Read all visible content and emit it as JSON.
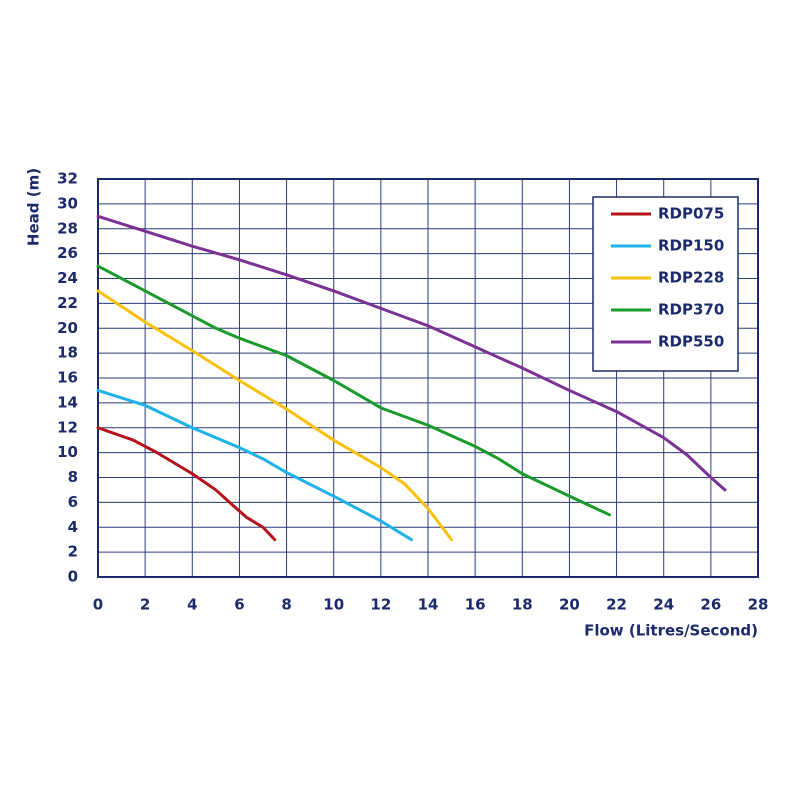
{
  "chart_data": {
    "type": "line",
    "xlabel": "Flow (Litres/Second)",
    "ylabel": "Head (m)",
    "xlim": [
      0,
      28
    ],
    "xticks": [
      0,
      2,
      4,
      6,
      8,
      10,
      12,
      14,
      16,
      18,
      20,
      22,
      24,
      26,
      28
    ],
    "ylim": [
      0,
      32
    ],
    "yticks": [
      0,
      2,
      4,
      6,
      8,
      10,
      12,
      14,
      16,
      18,
      20,
      22,
      24,
      26,
      28,
      30,
      32
    ],
    "grid": true,
    "legend": "top-right",
    "series": [
      {
        "name": "RDP075",
        "color": "#b5121b",
        "x": [
          0,
          1.5,
          2.5,
          4,
          5,
          5.7,
          6.3,
          7,
          7.5
        ],
        "values": [
          12,
          11,
          10,
          8.3,
          7,
          5.8,
          4.8,
          4,
          3
        ]
      },
      {
        "name": "RDP150",
        "color": "#1fb2e8",
        "x": [
          0,
          2,
          4,
          6,
          7,
          8,
          10,
          12,
          13.3
        ],
        "values": [
          15,
          13.8,
          12,
          10.4,
          9.5,
          8.4,
          6.5,
          4.5,
          3
        ]
      },
      {
        "name": "RDP228",
        "color": "#f9c10e",
        "x": [
          0,
          2,
          4,
          6,
          8,
          10,
          12,
          13,
          14,
          14.6,
          15
        ],
        "values": [
          23,
          20.5,
          18.2,
          15.8,
          13.5,
          11,
          8.8,
          7.5,
          5.5,
          4,
          3
        ]
      },
      {
        "name": "RDP370",
        "color": "#1a9a2a",
        "x": [
          0,
          2,
          4,
          5,
          6,
          8,
          10,
          12,
          14,
          16,
          17,
          18,
          20,
          21.7
        ],
        "values": [
          25,
          23,
          21,
          20,
          19.2,
          17.8,
          15.8,
          13.6,
          12.2,
          10.5,
          9.5,
          8.3,
          6.5,
          5
        ]
      },
      {
        "name": "RDP550",
        "color": "#7b3294",
        "x": [
          0,
          2,
          4,
          6,
          8,
          10,
          12,
          14,
          16,
          18,
          20,
          22,
          24,
          25,
          26,
          26.6
        ],
        "values": [
          29,
          27.8,
          26.6,
          25.5,
          24.3,
          23,
          21.6,
          20.2,
          18.5,
          16.8,
          15,
          13.3,
          11.2,
          9.8,
          8,
          7
        ]
      }
    ]
  }
}
